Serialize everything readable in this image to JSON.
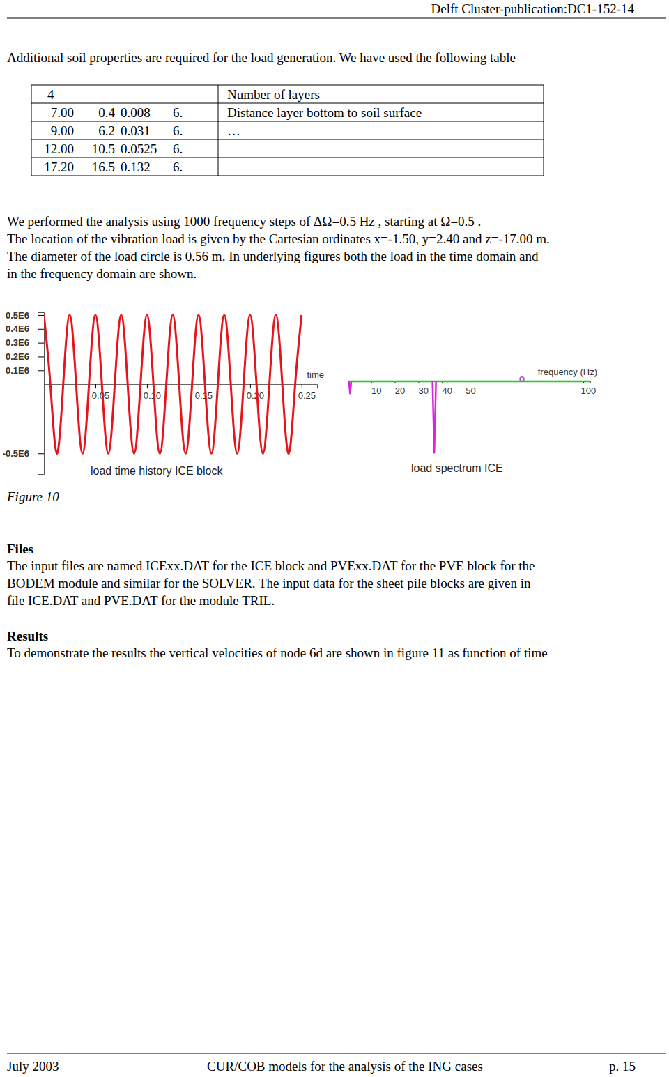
{
  "header": {
    "text": "Delft Cluster-publication:DC1-152-14"
  },
  "intro": "Additional soil properties are required for the load generation. We have used the following table",
  "table": {
    "rows": [
      {
        "cells": [
          "4"
        ],
        "description": "Number of layers"
      },
      {
        "cells": [
          "7.00",
          "0.4",
          "0.008",
          "6."
        ],
        "description": "Distance layer bottom to soil surface"
      },
      {
        "cells": [
          "9.00",
          "6.2",
          "0.031",
          "6."
        ],
        "description": "…"
      },
      {
        "cells": [
          "12.00",
          "10.5",
          "0.0525",
          "6."
        ]
      },
      {
        "cells": [
          "17.20",
          "16.5",
          "0.132",
          "6."
        ]
      }
    ]
  },
  "analysis_lines": [
    "We performed the analysis using 1000 frequency steps of ΔΩ=0.5 Hz , starting at Ω=0.5 .",
    "The location of the vibration load is given by the Cartesian ordinates x=-1.50, y=2.40 and z=-17.00 m.",
    "The diameter of the load circle is 0.56 m. In underlying figures both the load in the time domain and",
    "in the frequency domain are shown."
  ],
  "chart_data": [
    {
      "type": "line",
      "title": "load time history ICE block",
      "x_label": "time",
      "x": [
        0,
        0.00625,
        0.0125,
        0.01875,
        0.025,
        0.03125,
        0.0375,
        0.04375,
        0.05,
        0.05625,
        0.0625,
        0.06875,
        0.075,
        0.08125,
        0.0875,
        0.09375,
        0.1,
        0.10625,
        0.1125,
        0.11875,
        0.125,
        0.13125,
        0.1375,
        0.14375,
        0.15,
        0.15625,
        0.1625,
        0.16875,
        0.175,
        0.18125,
        0.1875,
        0.19375,
        0.2,
        0.20625,
        0.2125,
        0.21875,
        0.225,
        0.23125,
        0.2375,
        0.24375,
        0.25
      ],
      "series": [
        {
          "color": "#e8141c",
          "line_style": "smooth",
          "values": [
            500000,
            0,
            -500000,
            0,
            500000,
            0,
            -500000,
            0,
            500000,
            0,
            -500000,
            0,
            500000,
            0,
            -500000,
            0,
            500000,
            0,
            -500000,
            0,
            500000,
            0,
            -500000,
            0,
            500000,
            0,
            -500000,
            0,
            500000,
            0,
            -500000,
            0,
            500000,
            0,
            -500000,
            0,
            500000,
            0,
            -500000,
            0,
            500000
          ]
        }
      ],
      "xlim": [
        0,
        0.265
      ],
      "ylim": [
        -650000,
        520000
      ],
      "xticks": [
        0.05,
        {
          "value": 0.1,
          "label": "0.10"
        },
        0.15,
        {
          "value": 0.2,
          "label": "0.20"
        },
        0.25
      ],
      "yticks": [
        {
          "value": 500000,
          "label": "0.5E6"
        },
        {
          "value": 400000,
          "label": "0.4E6"
        },
        {
          "value": 300000,
          "label": "0.3E6"
        },
        {
          "value": 200000,
          "label": "0.2E6"
        },
        {
          "value": 100000,
          "label": "0.1E6"
        },
        {
          "value": -500000,
          "label": "-0.5E6"
        }
      ]
    },
    {
      "type": "line",
      "title": "load spectrum ICE",
      "x_label": "frequency (Hz)",
      "series": [
        {
          "color": "#22cc22",
          "line_style": "solid",
          "x": [
            0.5,
            103
          ],
          "values": [
            0,
            0
          ]
        },
        {
          "color": "#e020e0",
          "line_style": "solid",
          "x": [
            0.5,
            1.0,
            1.5,
            20,
            36,
            36.75,
            37.5
          ],
          "values": [
            0,
            -0.17,
            0,
            null,
            0,
            -1,
            0
          ]
        },
        {
          "type": "scatter",
          "color": "#b050c8",
          "marker": "circle",
          "x": [
            74
          ],
          "values": [
            0.03
          ]
        }
      ],
      "xlim": [
        0,
        103
      ],
      "ylim": [
        -1.3,
        0.8
      ],
      "xticks": [
        10,
        20,
        30,
        40,
        50,
        100
      ],
      "tick_labels": "x"
    }
  ],
  "figure_caption": "Figure 10",
  "sections": [
    {
      "heading": "Files",
      "lines": [
        "The input files are named ICExx.DAT for the ICE block and PVExx.DAT for the PVE block for the",
        "BODEM module and similar for the SOLVER. The input data for the sheet pile blocks are given in",
        "file ICE.DAT and PVE.DAT for the module TRIL."
      ]
    },
    {
      "heading": "Results",
      "lines": [
        "To demonstrate the results the vertical velocities of node 6d are shown in figure 11 as function of time"
      ]
    }
  ],
  "footer": {
    "date": "July 2003",
    "title": "CUR/COB models for the analysis of the ING cases",
    "page": "p. 15"
  }
}
